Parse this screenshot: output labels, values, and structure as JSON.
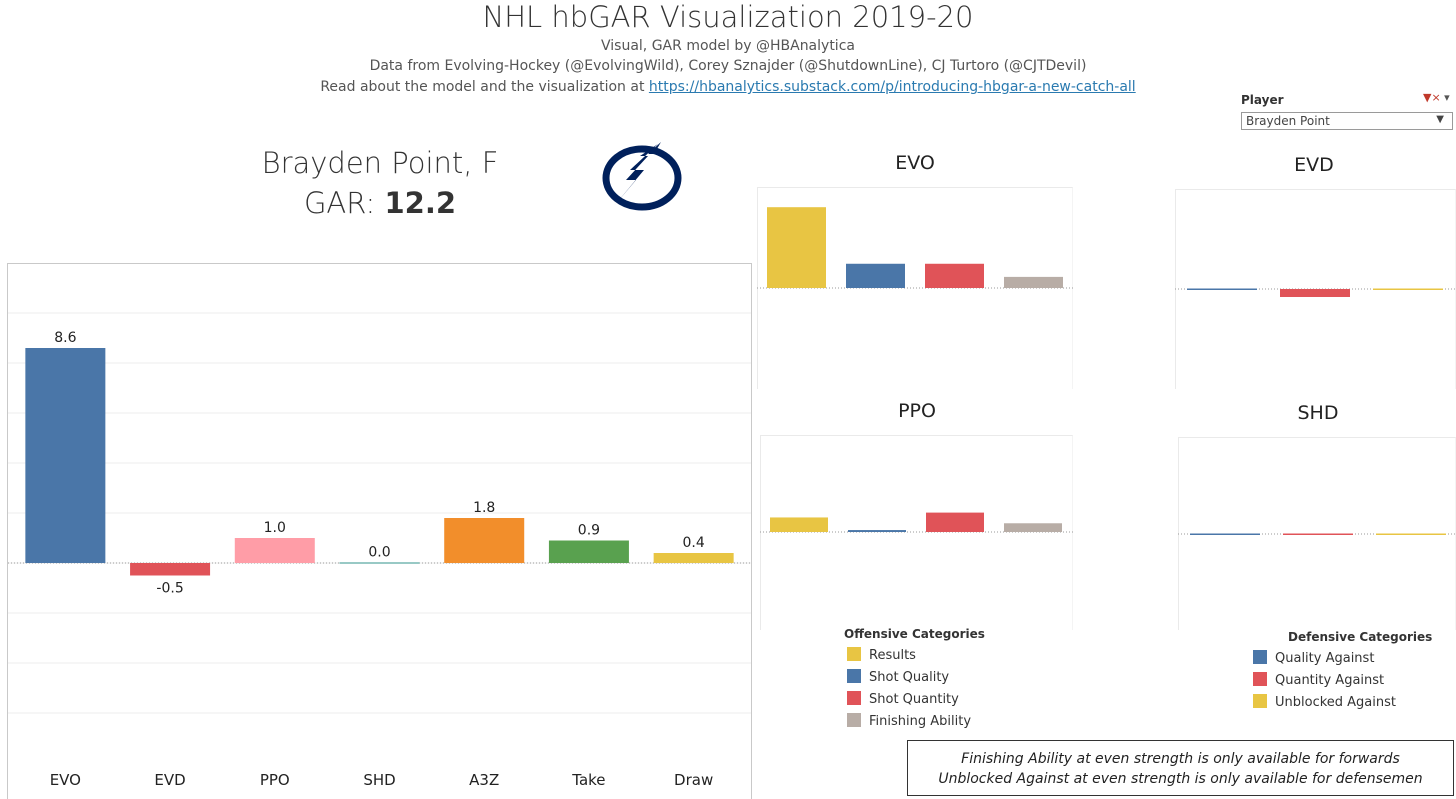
{
  "header": {
    "title": "NHL hbGAR Visualization 2019-20",
    "subtitle1": "Visual, GAR model by @HBAnalytica",
    "subtitle2": "Data from Evolving-Hockey (@EvolvingWild), Corey Sznajder (@ShutdownLine), CJ Turtoro (@CJTDevil)",
    "subtitle3_prefix": "Read about the model and the visualization at",
    "subtitle3_link": "https://hbanalytics.substack.com/p/introducing-hbgar-a-new-catch-all"
  },
  "filter": {
    "label": "Player",
    "value": "Brayden Point"
  },
  "player": {
    "name_line": "Brayden Point, F",
    "gar_label": "GAR:",
    "gar_value": "12.2"
  },
  "legends": {
    "offensive": {
      "title": "Offensive Categories",
      "items": [
        {
          "label": "Results",
          "color": "#e8c543"
        },
        {
          "label": "Shot Quality",
          "color": "#4a76a8"
        },
        {
          "label": "Shot Quantity",
          "color": "#e05358"
        },
        {
          "label": "Finishing Ability",
          "color": "#b8ada6"
        }
      ]
    },
    "defensive": {
      "title": "Defensive Categories",
      "items": [
        {
          "label": "Quality Against",
          "color": "#4a76a8"
        },
        {
          "label": "Quantity Against",
          "color": "#e05358"
        },
        {
          "label": "Unblocked Against",
          "color": "#e8c543"
        }
      ]
    }
  },
  "notes": {
    "line1": "Finishing Ability at even strength is only available for forwards",
    "line2": "Unblocked Against at even strength is only available for defensemen"
  },
  "chart_data": [
    {
      "type": "bar",
      "id": "main",
      "categories": [
        "EVO",
        "EVD",
        "PPO",
        "SHD",
        "A3Z",
        "Take",
        "Draw"
      ],
      "values": [
        8.6,
        -0.5,
        1.0,
        0.0,
        1.8,
        0.9,
        0.4
      ],
      "labels": [
        "8.6",
        "-0.5",
        "1.0",
        "0.0",
        "1.8",
        "0.9",
        "0.4"
      ],
      "colors": [
        "#4a76a8",
        "#e05358",
        "#ff9da7",
        "#76b7b2",
        "#f28e2b",
        "#59a14f",
        "#e8c543"
      ],
      "ylim": [
        -8,
        12
      ],
      "grid": true
    },
    {
      "type": "bar",
      "id": "evo",
      "title": "EVO",
      "categories": [
        "Results",
        "Shot Quality",
        "Shot Quantity",
        "Finishing Ability"
      ],
      "values": [
        4.0,
        1.2,
        1.2,
        0.55
      ],
      "colors": [
        "#e8c543",
        "#4a76a8",
        "#e05358",
        "#b8ada6"
      ],
      "ylim": [
        -5,
        5
      ]
    },
    {
      "type": "bar",
      "id": "evd",
      "title": "EVD",
      "categories": [
        "Quality Against",
        "Quantity Against",
        "Unblocked Against"
      ],
      "values": [
        -0.05,
        -0.4,
        -0.03
      ],
      "colors": [
        "#4a76a8",
        "#e05358",
        "#e8c543"
      ],
      "ylim": [
        -5,
        5
      ]
    },
    {
      "type": "bar",
      "id": "ppo",
      "title": "PPO",
      "categories": [
        "Results",
        "Shot Quality",
        "Shot Quantity",
        "Finishing Ability"
      ],
      "values": [
        0.75,
        0.1,
        1.0,
        0.45
      ],
      "colors": [
        "#e8c543",
        "#4a76a8",
        "#e05358",
        "#b8ada6"
      ],
      "ylim": [
        -5,
        5
      ]
    },
    {
      "type": "bar",
      "id": "shd",
      "title": "SHD",
      "categories": [
        "Quality Against",
        "Quantity Against",
        "Unblocked Against"
      ],
      "values": [
        -0.05,
        -0.05,
        -0.05
      ],
      "colors": [
        "#4a76a8",
        "#e05358",
        "#e8c543"
      ],
      "ylim": [
        -5,
        5
      ]
    }
  ]
}
